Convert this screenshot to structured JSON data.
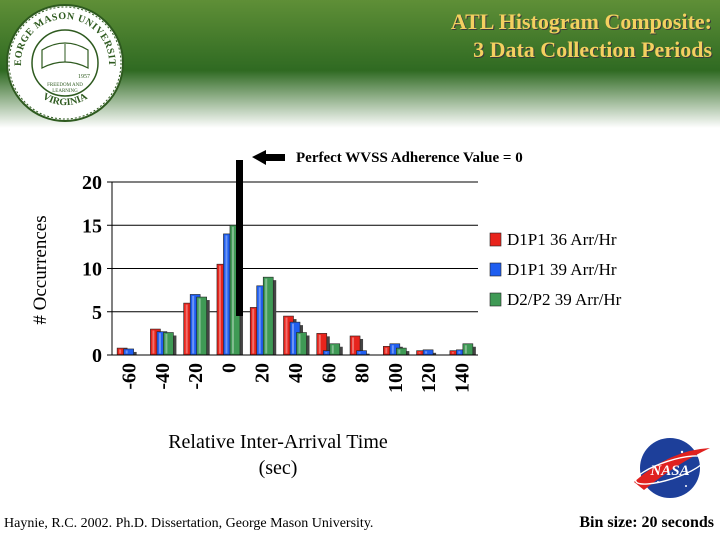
{
  "slide": {
    "title_line1": "ATL Histogram Composite:",
    "title_line2": "3 Data Collection Periods",
    "logo_text_top": "GEORGE MASON UNIVERSITY",
    "logo_text_bottom": "VIRGINIA",
    "logo_year": "1957",
    "logo_motto1": "FREEDOM AND",
    "logo_motto2": "LEARNING",
    "nasa_text": "NASA",
    "citation": "Haynie, R.C. 2002.  Ph.D. Dissertation, George Mason University.",
    "bin_size": "Bin size: 20 seconds"
  },
  "chart_data": {
    "type": "bar",
    "annotation": "Perfect WVSS Adherence Value = 0",
    "xlabel_line1": "Relative Inter-Arrival Time",
    "xlabel_line2": "(sec)",
    "ylabel": "# Occurrences",
    "ylim": [
      0,
      20
    ],
    "yticks": [
      0,
      5,
      10,
      15,
      20
    ],
    "categories": [
      "-60",
      "-40",
      "-20",
      "0",
      "20",
      "40",
      "60",
      "80",
      "100",
      "120",
      "140"
    ],
    "series": [
      {
        "name": "D1P1 36 Arr/Hr",
        "color": "#e8241c",
        "values": [
          0.8,
          3,
          6,
          10.5,
          5.5,
          4.5,
          2.5,
          2.2,
          1,
          0.5,
          0.5
        ]
      },
      {
        "name": "D1P1 39 Arr/Hr",
        "color": "#1f5ef0",
        "values": [
          0.7,
          2.7,
          7,
          14,
          8,
          3.8,
          0.5,
          0.5,
          1.3,
          0.6,
          0.6
        ]
      },
      {
        "name": "D2/P2 39 Arr/Hr",
        "color": "#3f9a55",
        "values": [
          0,
          2.6,
          6.7,
          15,
          9,
          2.6,
          1.3,
          0,
          0.8,
          0,
          1.3
        ]
      }
    ],
    "grid": "horizontal",
    "legend_position": "right"
  }
}
